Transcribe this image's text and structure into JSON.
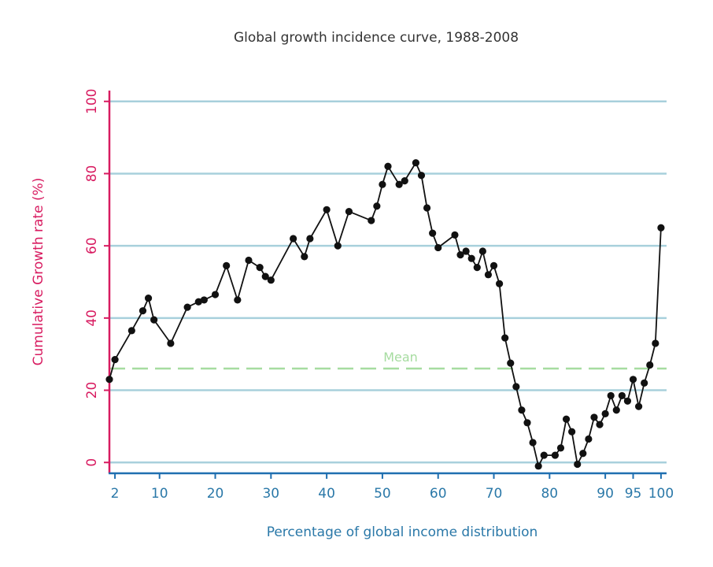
{
  "chart_data": {
    "type": "line",
    "title": "Global growth incidence curve, 1988-2008",
    "xlabel": "Percentage of global income distribution",
    "ylabel": "Cumulative Growth rate (%)",
    "xlim": [
      1,
      101
    ],
    "ylim": [
      -3,
      103
    ],
    "xticks": [
      2,
      10,
      20,
      30,
      40,
      50,
      60,
      70,
      80,
      90,
      95,
      100
    ],
    "yticks": [
      0,
      20,
      40,
      60,
      80,
      100
    ],
    "grid": "horizontal",
    "mean": {
      "label": "Mean",
      "value": 26
    },
    "series": [
      {
        "name": "Cumulative growth",
        "x": [
          1,
          2,
          5,
          7,
          8,
          9,
          12,
          15,
          17,
          18,
          20,
          22,
          24,
          26,
          28,
          29,
          30,
          34,
          36,
          37,
          40,
          42,
          44,
          48,
          49,
          50,
          51,
          53,
          54,
          56,
          57,
          58,
          59,
          60,
          63,
          64,
          65,
          66,
          67,
          68,
          69,
          70,
          71,
          72,
          73,
          74,
          75,
          76,
          77,
          78,
          79,
          81,
          82,
          83,
          84,
          85,
          86,
          87,
          88,
          89,
          90,
          91,
          92,
          93,
          94,
          95,
          96,
          97,
          98,
          99,
          100
        ],
        "y": [
          23,
          28.5,
          36.5,
          42,
          45.5,
          39.5,
          33,
          43,
          44.5,
          45,
          46.5,
          54.5,
          45,
          56,
          54,
          51.5,
          50.5,
          62,
          57,
          62,
          70,
          60,
          69.5,
          67,
          71,
          77,
          82,
          77,
          78,
          83,
          79.5,
          70.5,
          63.5,
          59.5,
          63,
          57.5,
          58.5,
          56.5,
          54,
          58.5,
          52,
          54.5,
          49.5,
          34.5,
          27.5,
          21,
          14.5,
          11,
          5.5,
          -1,
          2,
          2,
          4,
          12,
          8.5,
          -0.5,
          2.5,
          6.5,
          12.5,
          10.5,
          13.5,
          18.5,
          14.5,
          18.5,
          17,
          23,
          15.5,
          22,
          27,
          33,
          65
        ]
      }
    ],
    "colors": {
      "line": "#111111",
      "point": "#111111",
      "grid": "#a8d0dc",
      "mean": "#a6dca0",
      "y_axis": "#d81b60",
      "x_axis": "#1f6fb0",
      "x_text": "#2a78a8",
      "title": "#333333"
    }
  }
}
